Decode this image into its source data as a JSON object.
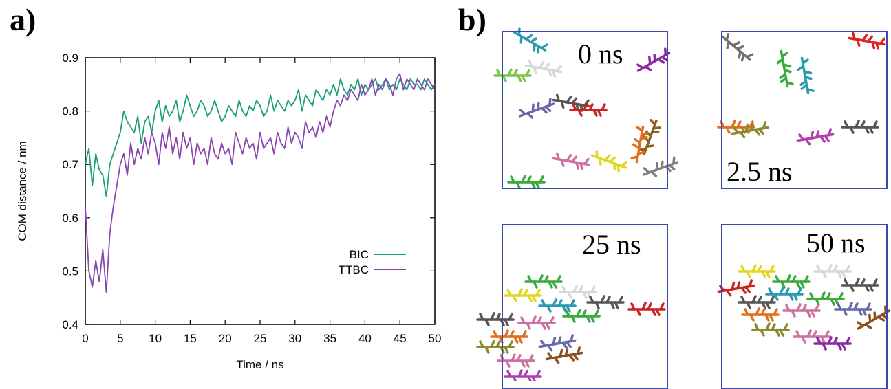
{
  "panel_a_label": "a)",
  "panel_b_label": "b)",
  "chart_data": {
    "type": "line",
    "title": "",
    "xlabel": "Time / ns",
    "ylabel": "COM distance / nm",
    "xlim": [
      0,
      50
    ],
    "ylim": [
      0.4,
      0.9
    ],
    "xticks": [
      "0",
      "5",
      "10",
      "15",
      "20",
      "25",
      "30",
      "35",
      "40",
      "45",
      "50"
    ],
    "yticks": [
      "0.4",
      "0.5",
      "0.6",
      "0.7",
      "0.8",
      "0.9"
    ],
    "legend_position": "bottom-right",
    "grid": false,
    "series": [
      {
        "name": "BIC",
        "color": "#1a9e77",
        "x": [
          0,
          0.5,
          1,
          1.5,
          2,
          2.5,
          3,
          3.5,
          4,
          4.5,
          5,
          5.5,
          6,
          6.5,
          7,
          7.5,
          8,
          8.5,
          9,
          9.5,
          10,
          10.5,
          11,
          11.5,
          12,
          12.5,
          13,
          13.5,
          14,
          14.5,
          15,
          15.5,
          16,
          16.5,
          17,
          17.5,
          18,
          18.5,
          19,
          19.5,
          20,
          20.5,
          21,
          21.5,
          22,
          22.5,
          23,
          23.5,
          24,
          24.5,
          25,
          25.5,
          26,
          26.5,
          27,
          27.5,
          28,
          28.5,
          29,
          29.5,
          30,
          30.5,
          31,
          31.5,
          32,
          32.5,
          33,
          33.5,
          34,
          34.5,
          35,
          35.5,
          36,
          36.5,
          37,
          37.5,
          38,
          38.5,
          39,
          39.5,
          40,
          40.5,
          41,
          41.5,
          42,
          42.5,
          43,
          43.5,
          44,
          44.5,
          45,
          45.5,
          46,
          46.5,
          47,
          47.5,
          48,
          48.5,
          49,
          49.5,
          50
        ],
        "y": [
          0.7,
          0.73,
          0.66,
          0.72,
          0.69,
          0.68,
          0.64,
          0.7,
          0.72,
          0.74,
          0.76,
          0.8,
          0.78,
          0.77,
          0.76,
          0.79,
          0.74,
          0.78,
          0.79,
          0.76,
          0.8,
          0.82,
          0.78,
          0.81,
          0.79,
          0.8,
          0.82,
          0.78,
          0.8,
          0.83,
          0.81,
          0.79,
          0.8,
          0.82,
          0.81,
          0.79,
          0.8,
          0.82,
          0.8,
          0.78,
          0.79,
          0.81,
          0.8,
          0.79,
          0.82,
          0.8,
          0.79,
          0.81,
          0.8,
          0.82,
          0.81,
          0.79,
          0.8,
          0.83,
          0.8,
          0.82,
          0.81,
          0.8,
          0.82,
          0.81,
          0.82,
          0.84,
          0.8,
          0.83,
          0.82,
          0.81,
          0.84,
          0.83,
          0.82,
          0.84,
          0.83,
          0.85,
          0.83,
          0.86,
          0.84,
          0.83,
          0.85,
          0.84,
          0.86,
          0.83,
          0.85,
          0.84,
          0.85,
          0.86,
          0.84,
          0.85,
          0.86,
          0.84,
          0.85,
          0.84,
          0.86,
          0.85,
          0.84,
          0.86,
          0.85,
          0.85,
          0.84,
          0.86,
          0.85,
          0.84,
          0.85
        ]
      },
      {
        "name": "TTBC",
        "color": "#8a44b0",
        "x": [
          0,
          0.5,
          1,
          1.5,
          2,
          2.5,
          3,
          3.5,
          4,
          4.5,
          5,
          5.5,
          6,
          6.5,
          7,
          7.5,
          8,
          8.5,
          9,
          9.5,
          10,
          10.5,
          11,
          11.5,
          12,
          12.5,
          13,
          13.5,
          14,
          14.5,
          15,
          15.5,
          16,
          16.5,
          17,
          17.5,
          18,
          18.5,
          19,
          19.5,
          20,
          20.5,
          21,
          21.5,
          22,
          22.5,
          23,
          23.5,
          24,
          24.5,
          25,
          25.5,
          26,
          26.5,
          27,
          27.5,
          28,
          28.5,
          29,
          29.5,
          30,
          30.5,
          31,
          31.5,
          32,
          32.5,
          33,
          33.5,
          34,
          34.5,
          35,
          35.5,
          36,
          36.5,
          37,
          37.5,
          38,
          38.5,
          39,
          39.5,
          40,
          40.5,
          41,
          41.5,
          42,
          42.5,
          43,
          43.5,
          44,
          44.5,
          45,
          45.5,
          46,
          46.5,
          47,
          47.5,
          48,
          48.5,
          49,
          49.5,
          50
        ],
        "y": [
          0.62,
          0.5,
          0.47,
          0.52,
          0.48,
          0.54,
          0.46,
          0.57,
          0.62,
          0.66,
          0.7,
          0.72,
          0.68,
          0.74,
          0.7,
          0.73,
          0.71,
          0.75,
          0.72,
          0.76,
          0.74,
          0.7,
          0.76,
          0.73,
          0.77,
          0.72,
          0.75,
          0.71,
          0.76,
          0.73,
          0.75,
          0.7,
          0.74,
          0.72,
          0.73,
          0.7,
          0.75,
          0.72,
          0.71,
          0.74,
          0.72,
          0.73,
          0.7,
          0.76,
          0.74,
          0.72,
          0.75,
          0.73,
          0.74,
          0.71,
          0.76,
          0.73,
          0.74,
          0.75,
          0.72,
          0.76,
          0.74,
          0.73,
          0.77,
          0.74,
          0.76,
          0.75,
          0.73,
          0.78,
          0.76,
          0.77,
          0.75,
          0.78,
          0.76,
          0.79,
          0.77,
          0.8,
          0.82,
          0.81,
          0.83,
          0.82,
          0.84,
          0.83,
          0.82,
          0.85,
          0.83,
          0.84,
          0.86,
          0.83,
          0.85,
          0.84,
          0.86,
          0.85,
          0.83,
          0.86,
          0.87,
          0.84,
          0.86,
          0.85,
          0.84,
          0.86,
          0.85,
          0.84,
          0.86,
          0.85,
          0.84
        ]
      }
    ]
  },
  "snapshots": [
    {
      "label": "0 ns"
    },
    {
      "label": "2.5 ns"
    },
    {
      "label": "25 ns"
    },
    {
      "label": "50 ns"
    }
  ]
}
